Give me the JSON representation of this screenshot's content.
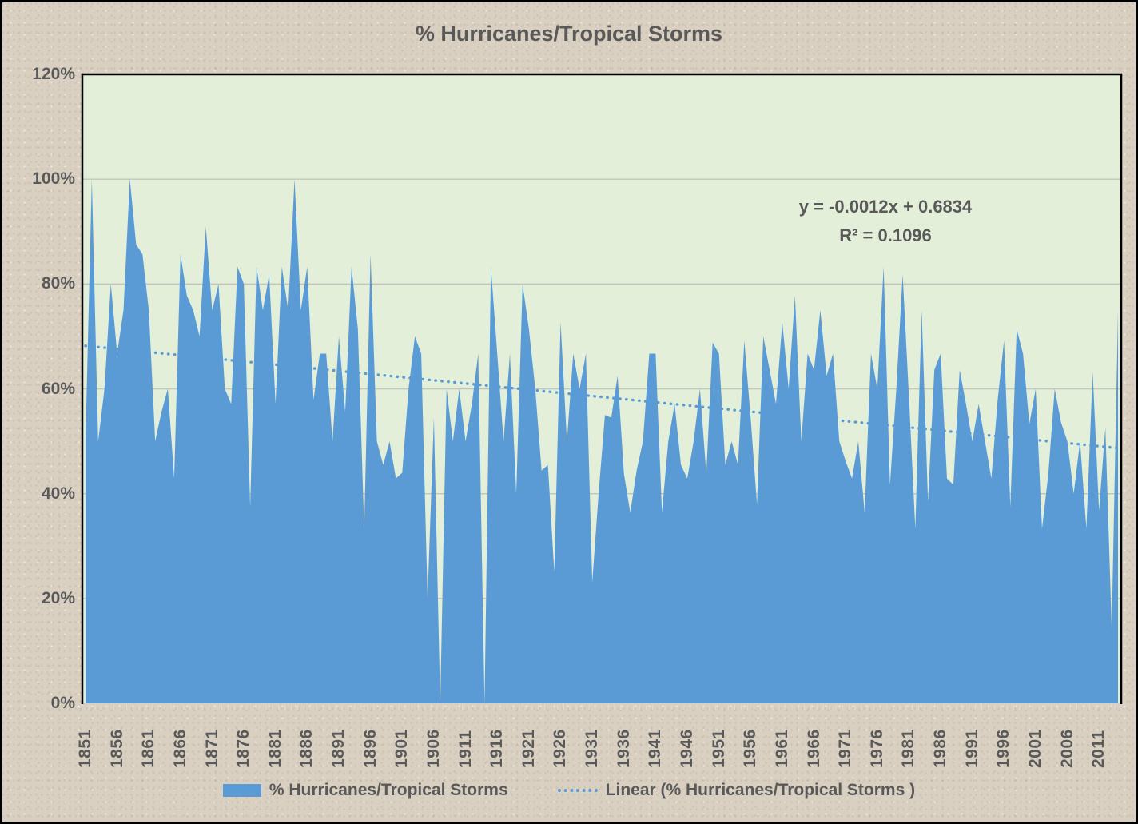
{
  "chart_data": {
    "type": "area",
    "title": "% Hurricanes/Tropical Storms",
    "xlabel": "",
    "ylabel": "",
    "ylim": [
      0,
      120
    ],
    "grid": true,
    "year_start": 1851,
    "year_end": 2014,
    "values": [
      50,
      100,
      50,
      60,
      80,
      66.7,
      75,
      100,
      87.5,
      85.7,
      75,
      50,
      55.6,
      60,
      42.9,
      85.7,
      77.8,
      75,
      70,
      90.9,
      75,
      80,
      60,
      57.1,
      83.3,
      80,
      37.5,
      83.3,
      75,
      81.8,
      57.1,
      83.3,
      75,
      100,
      75,
      83.3,
      57.9,
      66.7,
      66.7,
      50,
      70,
      55.6,
      83.3,
      71.4,
      33.3,
      85.7,
      50,
      45.5,
      50,
      42.9,
      44,
      60,
      70,
      66.7,
      20,
      54.5,
      0,
      60,
      50,
      60,
      50,
      57.1,
      66.7,
      0,
      83.3,
      66.7,
      50,
      66.7,
      40,
      80,
      71.4,
      60,
      44.4,
      45.5,
      25,
      72.7,
      50,
      66.7,
      60,
      66.7,
      23.1,
      40,
      55,
      54.5,
      62.5,
      43.8,
      36.4,
      44.4,
      50,
      66.7,
      66.7,
      36.4,
      50,
      57.1,
      45.5,
      42.9,
      50,
      60,
      43.8,
      68.8,
      66.7,
      45.5,
      50,
      45.5,
      69.2,
      54.5,
      38,
      70,
      63.6,
      57.1,
      72.7,
      60,
      77.8,
      50,
      66.7,
      63.6,
      75,
      62.5,
      66.7,
      50,
      46.2,
      42.9,
      50,
      36.4,
      66.7,
      60,
      83.3,
      41.7,
      60,
      81.8,
      58.3,
      33.3,
      75,
      38.5,
      63.6,
      66.7,
      42.9,
      41.7,
      63.6,
      57.1,
      50,
      57.1,
      50,
      42.9,
      57.9,
      69.2,
      37.5,
      71.4,
      66.7,
      53.3,
      60,
      33.3,
      43.8,
      60,
      53.6,
      50,
      40,
      50,
      33.3,
      63.2,
      36.8,
      52.6,
      14.3,
      75
    ],
    "y_ticks": [
      "0%",
      "20%",
      "40%",
      "60%",
      "80%",
      "100%",
      "120%"
    ],
    "x_tick_labels": [
      "1851",
      "1856",
      "1861",
      "1866",
      "1871",
      "1876",
      "1881",
      "1886",
      "1891",
      "1896",
      "1901",
      "1906",
      "1911",
      "1916",
      "1921",
      "1926",
      "1931",
      "1936",
      "1941",
      "1946",
      "1951",
      "1956",
      "1961",
      "1966",
      "1971",
      "1976",
      "1981",
      "1986",
      "1991",
      "1996",
      "2001",
      "2006",
      "2011"
    ],
    "annotation": {
      "line1": "y = -0.0012x + 0.6834",
      "line2": "R² = 0.1096"
    },
    "trend": {
      "equation": "y = -0.0012x + 0.6834",
      "r_squared": "0.1096",
      "start_pct": 68.2,
      "end_pct": 48.7,
      "style": "dotted"
    },
    "legend": [
      {
        "label": "% Hurricanes/Tropical Storms",
        "swatch": "area-fill"
      },
      {
        "label": "Linear (% Hurricanes/Tropical Storms )",
        "swatch": "dotted-line"
      }
    ],
    "legend_position": "bottom",
    "colors": {
      "area": "#5b9bd5",
      "trend_line": "#5b9bd5",
      "plot_background": "#e3efd9",
      "page_background": "#d9d0c1",
      "text": "#595959",
      "gridline": "#c2c5bd",
      "plot_border": "#000000",
      "tick": "#dcdcdc"
    }
  }
}
